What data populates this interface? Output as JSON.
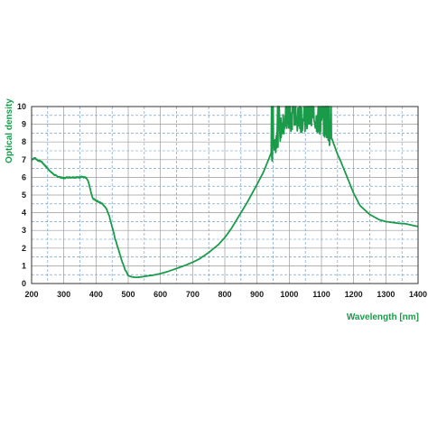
{
  "chart_data": {
    "type": "line",
    "title": "",
    "xlabel": "Wavelength [nm]",
    "ylabel": "Optical density",
    "xlim": [
      200,
      1400
    ],
    "ylim": [
      0,
      10
    ],
    "x_ticks": [
      "200",
      "300",
      "400",
      "500",
      "600",
      "700",
      "800",
      "900",
      "1000",
      "1100",
      "1200",
      "1300",
      "1400"
    ],
    "y_ticks": [
      "0",
      "1",
      "2",
      "3",
      "4",
      "5",
      "6",
      "7",
      "8",
      "9",
      "10"
    ],
    "grid": true,
    "legend": "none",
    "colors": {
      "series": "#1a9b4a",
      "axis_title": "#1a9b4a",
      "grid_major": "#9a9a9a",
      "grid_minor": "#5b8fc7",
      "frame": "#333333"
    },
    "series": [
      {
        "x": [
          200,
          210,
          220,
          230,
          240,
          250,
          260,
          270,
          280,
          290,
          300,
          310,
          320,
          330,
          340,
          350,
          355,
          360,
          365,
          370,
          375,
          380,
          385,
          390,
          400,
          410,
          420,
          430,
          440,
          450,
          460,
          470,
          480,
          490,
          500,
          510,
          520,
          530,
          540,
          550,
          560,
          580,
          600,
          620,
          650,
          680,
          700,
          720,
          750,
          780,
          800,
          820,
          850,
          870,
          900,
          920,
          940,
          950,
          960,
          970,
          980,
          990,
          1000,
          1010,
          1020,
          1030,
          1040,
          1050,
          1060,
          1070,
          1080,
          1090,
          1100,
          1110,
          1120,
          1130,
          1140,
          1150,
          1160,
          1180,
          1200,
          1220,
          1250,
          1280,
          1300,
          1320,
          1340,
          1360,
          1380,
          1400
        ],
        "y": [
          7.0,
          7.1,
          6.95,
          6.9,
          6.7,
          6.5,
          6.3,
          6.15,
          6.05,
          6.0,
          5.95,
          6.0,
          6.0,
          6.0,
          6.0,
          6.0,
          6.05,
          6.0,
          6.0,
          5.95,
          5.8,
          5.5,
          5.1,
          4.8,
          4.7,
          4.6,
          4.5,
          4.3,
          3.9,
          3.2,
          2.5,
          1.9,
          1.3,
          0.8,
          0.45,
          0.38,
          0.35,
          0.35,
          0.37,
          0.4,
          0.43,
          0.48,
          0.56,
          0.66,
          0.85,
          1.05,
          1.2,
          1.38,
          1.75,
          2.2,
          2.6,
          3.1,
          4.0,
          4.6,
          5.6,
          6.3,
          7.2,
          7.7,
          8.2,
          8.6,
          8.9,
          9.1,
          9.2,
          9.4,
          9.1,
          9.3,
          9.2,
          9.1,
          9.3,
          9.2,
          9.3,
          9.1,
          9.0,
          8.9,
          8.7,
          8.3,
          7.8,
          7.3,
          6.9,
          6.0,
          5.1,
          4.4,
          3.9,
          3.6,
          3.5,
          3.45,
          3.4,
          3.38,
          3.3,
          3.22
        ],
        "noisy_range": [
          945,
          1130
        ],
        "noise_top": 10
      }
    ]
  }
}
